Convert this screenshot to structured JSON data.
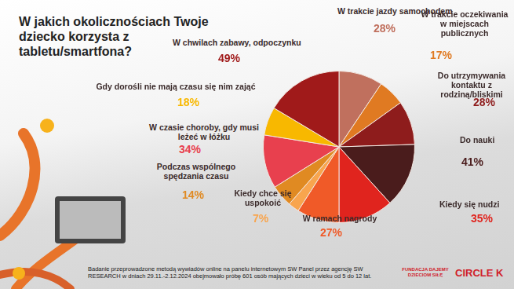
{
  "chart_data": {
    "type": "pie",
    "title": "W jakich okolicznościach Twoje dziecko korzysta z tabletu/smartfona?",
    "categories": [
      "W trakcie jazdy samochodem",
      "W trakcie oczekiwania w miejscach publicznych",
      "Do utrzymywania kontaktu z rodziną/bliskimi",
      "Do nauki",
      "Kiedy się nudzi",
      "W ramach nagrody",
      "Kiedy chce się uspokoić",
      "Podczas wspólnego spędzania czasu",
      "W czasie choroby, gdy musi leżeć w łóżku",
      "Gdy dorośli nie mają czasu się nim zająć",
      "W chwilach zabawy, odpoczynku"
    ],
    "values": [
      28,
      17,
      28,
      41,
      35,
      27,
      7,
      14,
      34,
      18,
      49
    ],
    "value_labels": [
      "28%",
      "17%",
      "28%",
      "41%",
      "35%",
      "27%",
      "7%",
      "14%",
      "34%",
      "18%",
      "49%"
    ],
    "colors": [
      "#c0705e",
      "#e07a22",
      "#8e1c1c",
      "#4a1c1c",
      "#e0241e",
      "#f05a28",
      "#f8a54e",
      "#e08a22",
      "#e8404e",
      "#f8b800",
      "#a01a1a"
    ],
    "data_labels": true,
    "footnote": "Badanie przeprowadzone metodą wywiadów online na panelu internetowym SW Panel przez agencję SW RESEARCH w dniach 29.11.-2.12.2024 obejmowało próbę 601 osób mających dzieci w wieku od 5 do 12 lat.",
    "logos": [
      "FUNDACJA DAJEMY DZIECIOM SIŁĘ",
      "CIRCLE K"
    ]
  }
}
